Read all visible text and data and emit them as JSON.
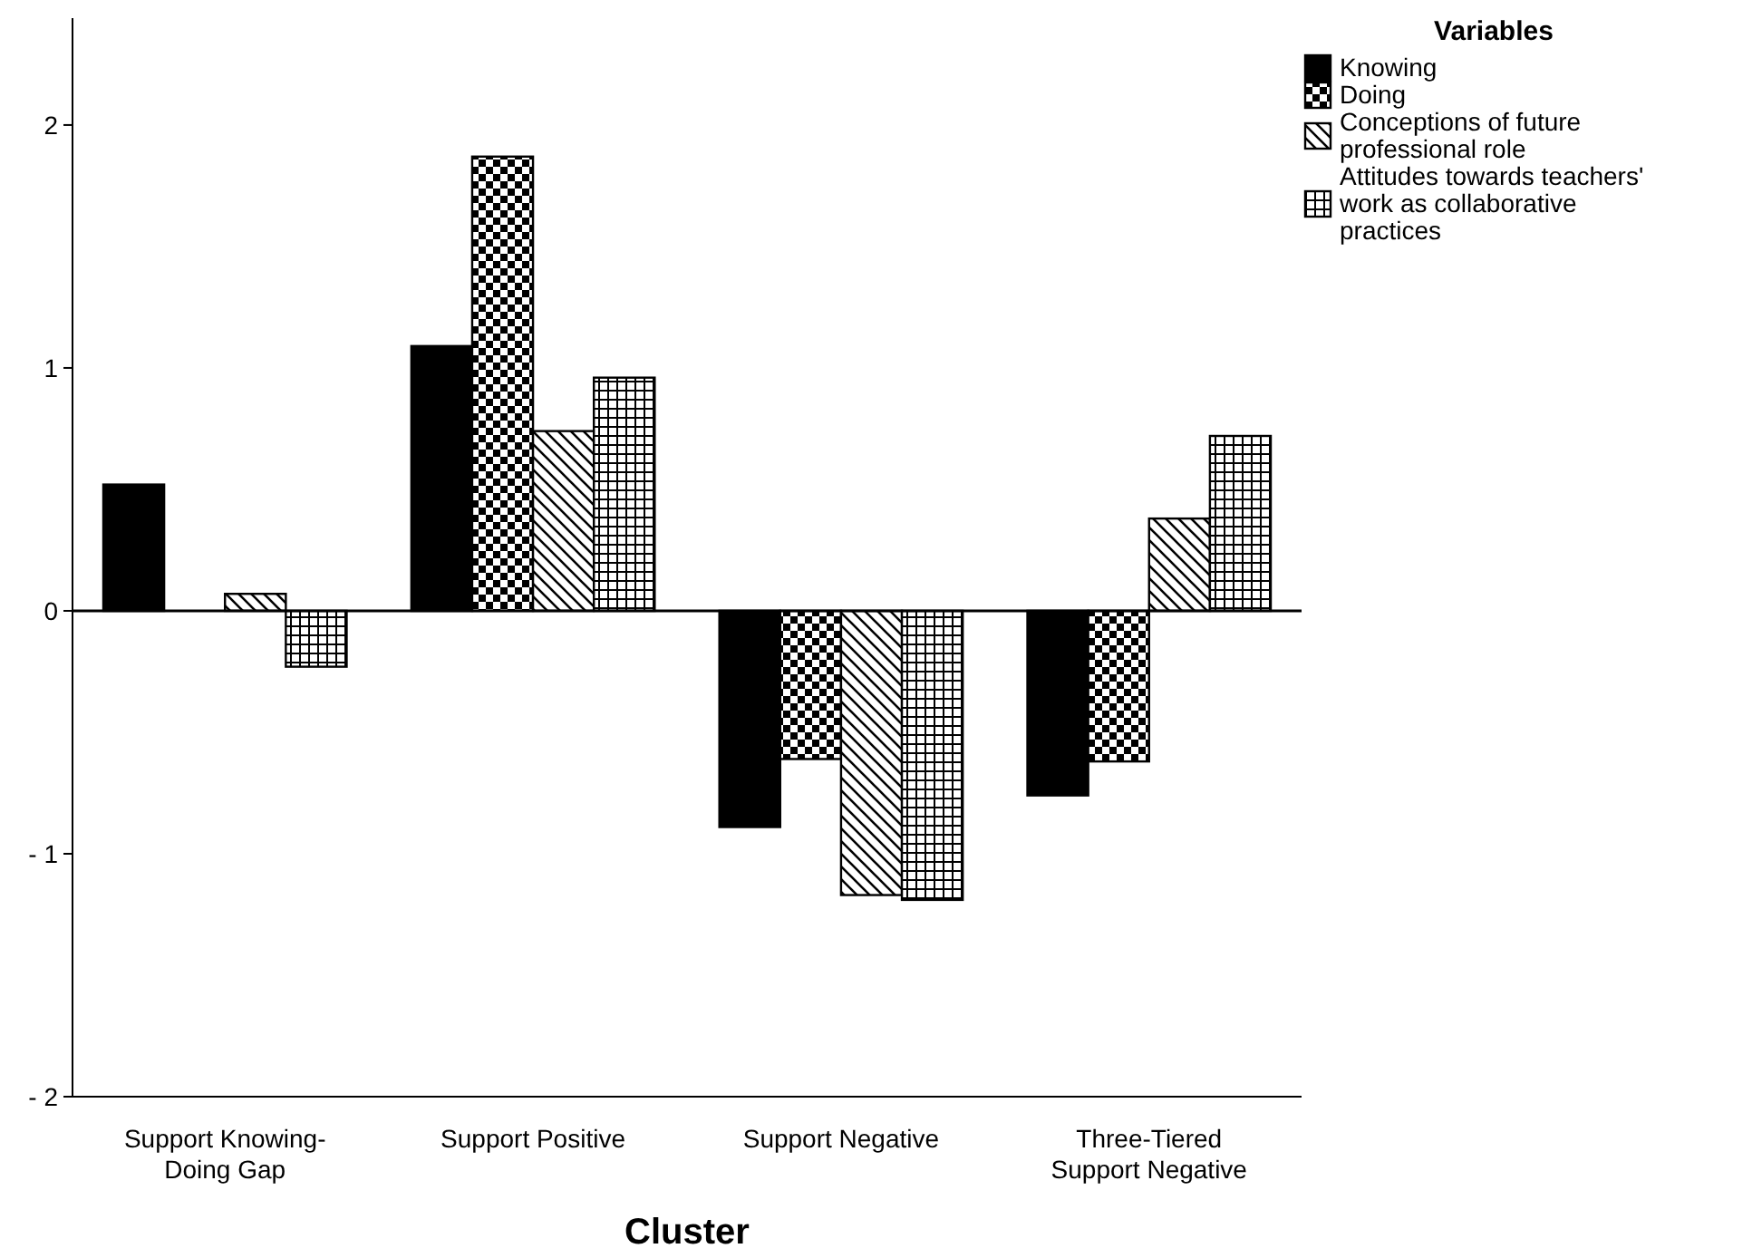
{
  "chart_data": {
    "type": "bar",
    "xlabel": "Cluster",
    "legend_title": "Variables",
    "legend": "top right",
    "categories": [
      "Support Knowing-Doing Gap",
      "Support Positive",
      "Support Negative",
      "Three-Tiered Support Negative"
    ],
    "series": [
      {
        "name": "Knowing",
        "color": "#000000",
        "values": [
          0.52,
          1.09,
          -0.89,
          -0.76
        ]
      },
      {
        "name": "Doing",
        "color": "#000000",
        "values": [
          0,
          1.87,
          -0.61,
          -0.62
        ]
      },
      {
        "name": "Conceptions of future professional role",
        "color": "#000000",
        "values": [
          0.07,
          0.74,
          -1.17,
          0.38
        ]
      },
      {
        "name": "Attitudes towards teachers' work as collaborative practices",
        "color": "#000000",
        "values": [
          -0.23,
          0.96,
          -1.19,
          0.72
        ]
      }
    ],
    "ylim": [
      -2,
      2.44
    ],
    "yticks": [
      {
        "value": -2,
        "label": "- 2"
      },
      {
        "value": -1,
        "label": "- 1"
      },
      0,
      1,
      2
    ],
    "ref_lines": [
      {
        "axis": "y",
        "value": 0
      }
    ]
  }
}
